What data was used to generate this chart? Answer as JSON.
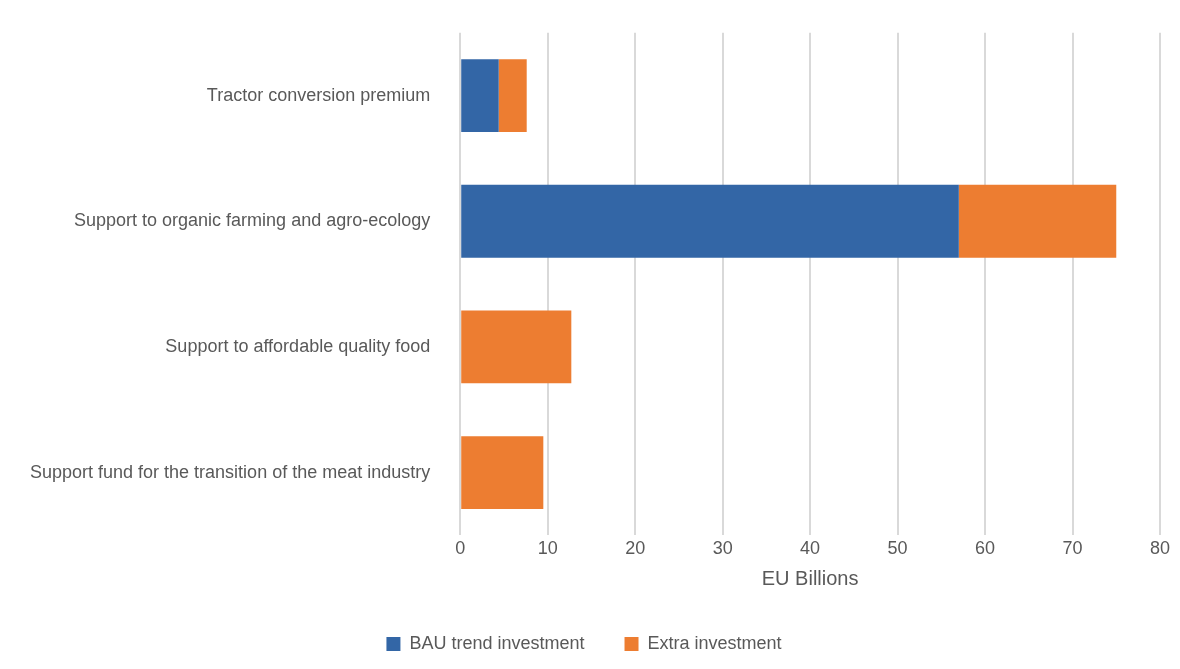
{
  "chart_data": {
    "type": "bar",
    "orientation": "horizontal",
    "stacked": true,
    "xlabel": "EU Billions",
    "categories": [
      "Tractor conversion premium",
      "Support to organic farming and agro-ecology",
      "Support to affordable quality food",
      "Support fund for the transition of the meat industry"
    ],
    "series": [
      {
        "name": "BAU trend investment",
        "color": "#3366a6",
        "values": [
          4.4,
          57,
          null,
          null
        ]
      },
      {
        "name": "Extra investment",
        "color": "#ed7d31",
        "values": [
          3.2,
          18,
          12.7,
          9.5
        ]
      }
    ],
    "xlim": [
      0,
      80
    ],
    "xticks": [
      0,
      10,
      20,
      30,
      40,
      50,
      60,
      70,
      80
    ],
    "grid": "x",
    "legend": "bottom"
  }
}
